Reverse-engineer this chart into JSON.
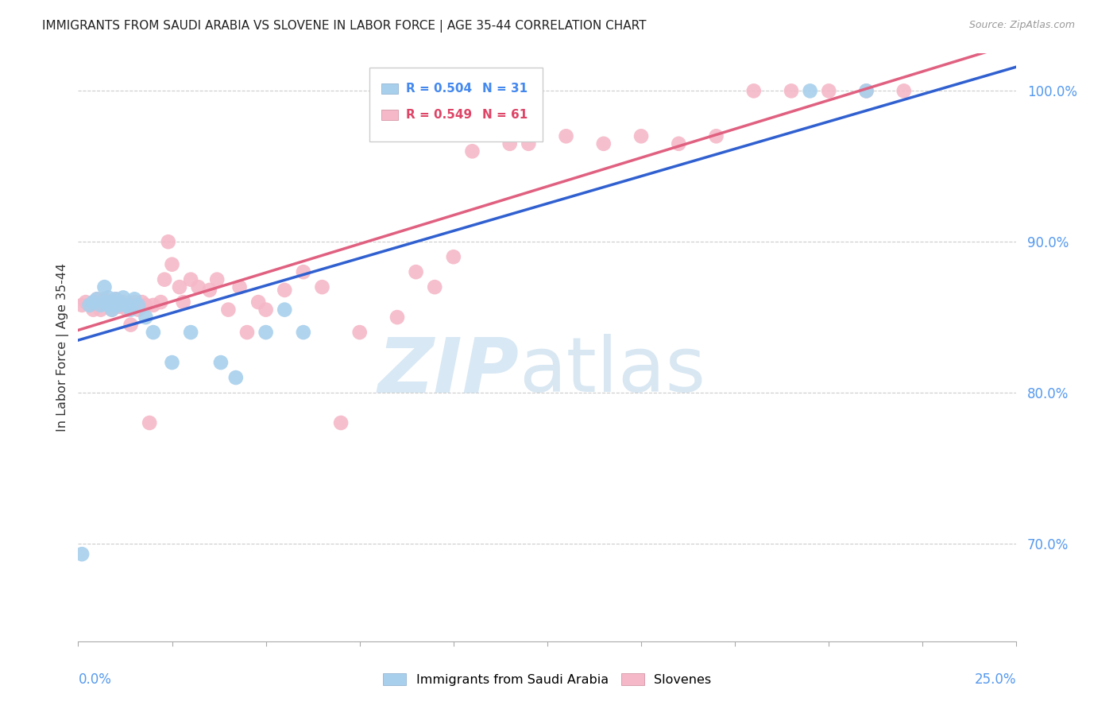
{
  "title": "IMMIGRANTS FROM SAUDI ARABIA VS SLOVENE IN LABOR FORCE | AGE 35-44 CORRELATION CHART",
  "source": "Source: ZipAtlas.com",
  "ylabel": "In Labor Force | Age 35-44",
  "ytick_labels": [
    "100.0%",
    "90.0%",
    "80.0%",
    "70.0%"
  ],
  "ytick_values": [
    1.0,
    0.9,
    0.8,
    0.7
  ],
  "xlim": [
    0.0,
    0.25
  ],
  "ylim": [
    0.635,
    1.025
  ],
  "legend_blue_r": "R = 0.504",
  "legend_blue_n": "N = 31",
  "legend_pink_r": "R = 0.549",
  "legend_pink_n": "N = 61",
  "blue_color": "#a8d0ec",
  "pink_color": "#f5b8c8",
  "blue_line_color": "#3060d0",
  "pink_line_color": "#e06080",
  "legend_label_blue": "Immigrants from Saudi Arabia",
  "legend_label_pink": "Slovenes",
  "blue_x": [
    0.001,
    0.003,
    0.004,
    0.005,
    0.006,
    0.007,
    0.007,
    0.008,
    0.008,
    0.009,
    0.009,
    0.01,
    0.01,
    0.011,
    0.011,
    0.012,
    0.013,
    0.014,
    0.015,
    0.016,
    0.018,
    0.02,
    0.025,
    0.03,
    0.038,
    0.042,
    0.05,
    0.055,
    0.06,
    0.195,
    0.21
  ],
  "blue_y": [
    0.693,
    0.858,
    0.86,
    0.862,
    0.858,
    0.86,
    0.87,
    0.858,
    0.863,
    0.86,
    0.855,
    0.858,
    0.862,
    0.858,
    0.86,
    0.863,
    0.858,
    0.855,
    0.862,
    0.858,
    0.85,
    0.84,
    0.82,
    0.84,
    0.82,
    0.81,
    0.84,
    0.855,
    0.84,
    1.0,
    1.0
  ],
  "pink_x": [
    0.001,
    0.002,
    0.003,
    0.004,
    0.005,
    0.005,
    0.006,
    0.007,
    0.008,
    0.009,
    0.009,
    0.01,
    0.01,
    0.011,
    0.012,
    0.013,
    0.014,
    0.015,
    0.016,
    0.017,
    0.018,
    0.019,
    0.02,
    0.022,
    0.023,
    0.024,
    0.025,
    0.027,
    0.028,
    0.03,
    0.032,
    0.035,
    0.037,
    0.04,
    0.043,
    0.045,
    0.048,
    0.05,
    0.055,
    0.06,
    0.065,
    0.07,
    0.075,
    0.085,
    0.09,
    0.095,
    0.1,
    0.105,
    0.11,
    0.115,
    0.12,
    0.13,
    0.14,
    0.15,
    0.16,
    0.17,
    0.18,
    0.19,
    0.2,
    0.21,
    0.22
  ],
  "pink_y": [
    0.858,
    0.86,
    0.858,
    0.855,
    0.862,
    0.858,
    0.855,
    0.862,
    0.858,
    0.86,
    0.855,
    0.858,
    0.862,
    0.857,
    0.86,
    0.855,
    0.845,
    0.86,
    0.855,
    0.86,
    0.858,
    0.78,
    0.858,
    0.86,
    0.875,
    0.9,
    0.885,
    0.87,
    0.86,
    0.875,
    0.87,
    0.868,
    0.875,
    0.855,
    0.87,
    0.84,
    0.86,
    0.855,
    0.868,
    0.88,
    0.87,
    0.78,
    0.84,
    0.85,
    0.88,
    0.87,
    0.89,
    0.96,
    0.975,
    0.965,
    0.965,
    0.97,
    0.965,
    0.97,
    0.965,
    0.97,
    1.0,
    1.0,
    1.0,
    1.0,
    1.0
  ],
  "trendline_x_start": 0.0,
  "trendline_x_end": 0.25
}
